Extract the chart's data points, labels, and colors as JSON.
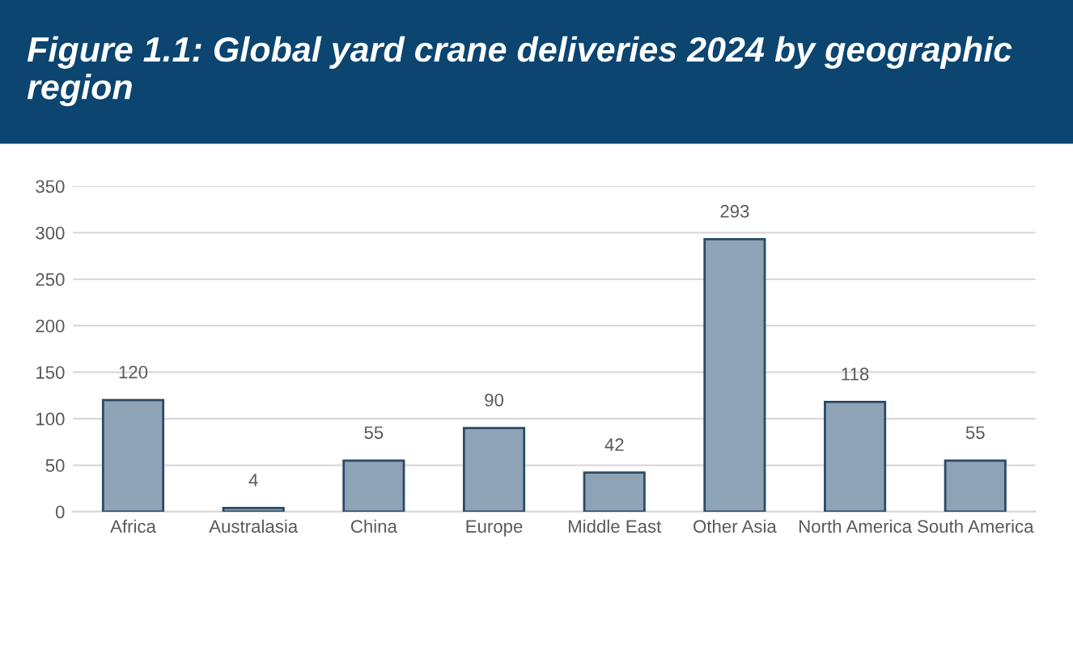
{
  "chart_data": {
    "type": "bar",
    "title": "Figure 1.1: Global yard crane deliveries 2024 by geographic region",
    "categories": [
      "Africa",
      "Australasia",
      "China",
      "Europe",
      "Middle East",
      "Other Asia",
      "North America",
      "South America"
    ],
    "values": [
      120,
      4,
      55,
      90,
      42,
      293,
      118,
      55
    ],
    "color": "#8fa3b6",
    "ylim": [
      0,
      350
    ],
    "yticks": [
      0,
      50,
      100,
      150,
      200,
      250,
      300,
      350
    ],
    "grid": "y",
    "data_labels": true,
    "legend": false
  }
}
